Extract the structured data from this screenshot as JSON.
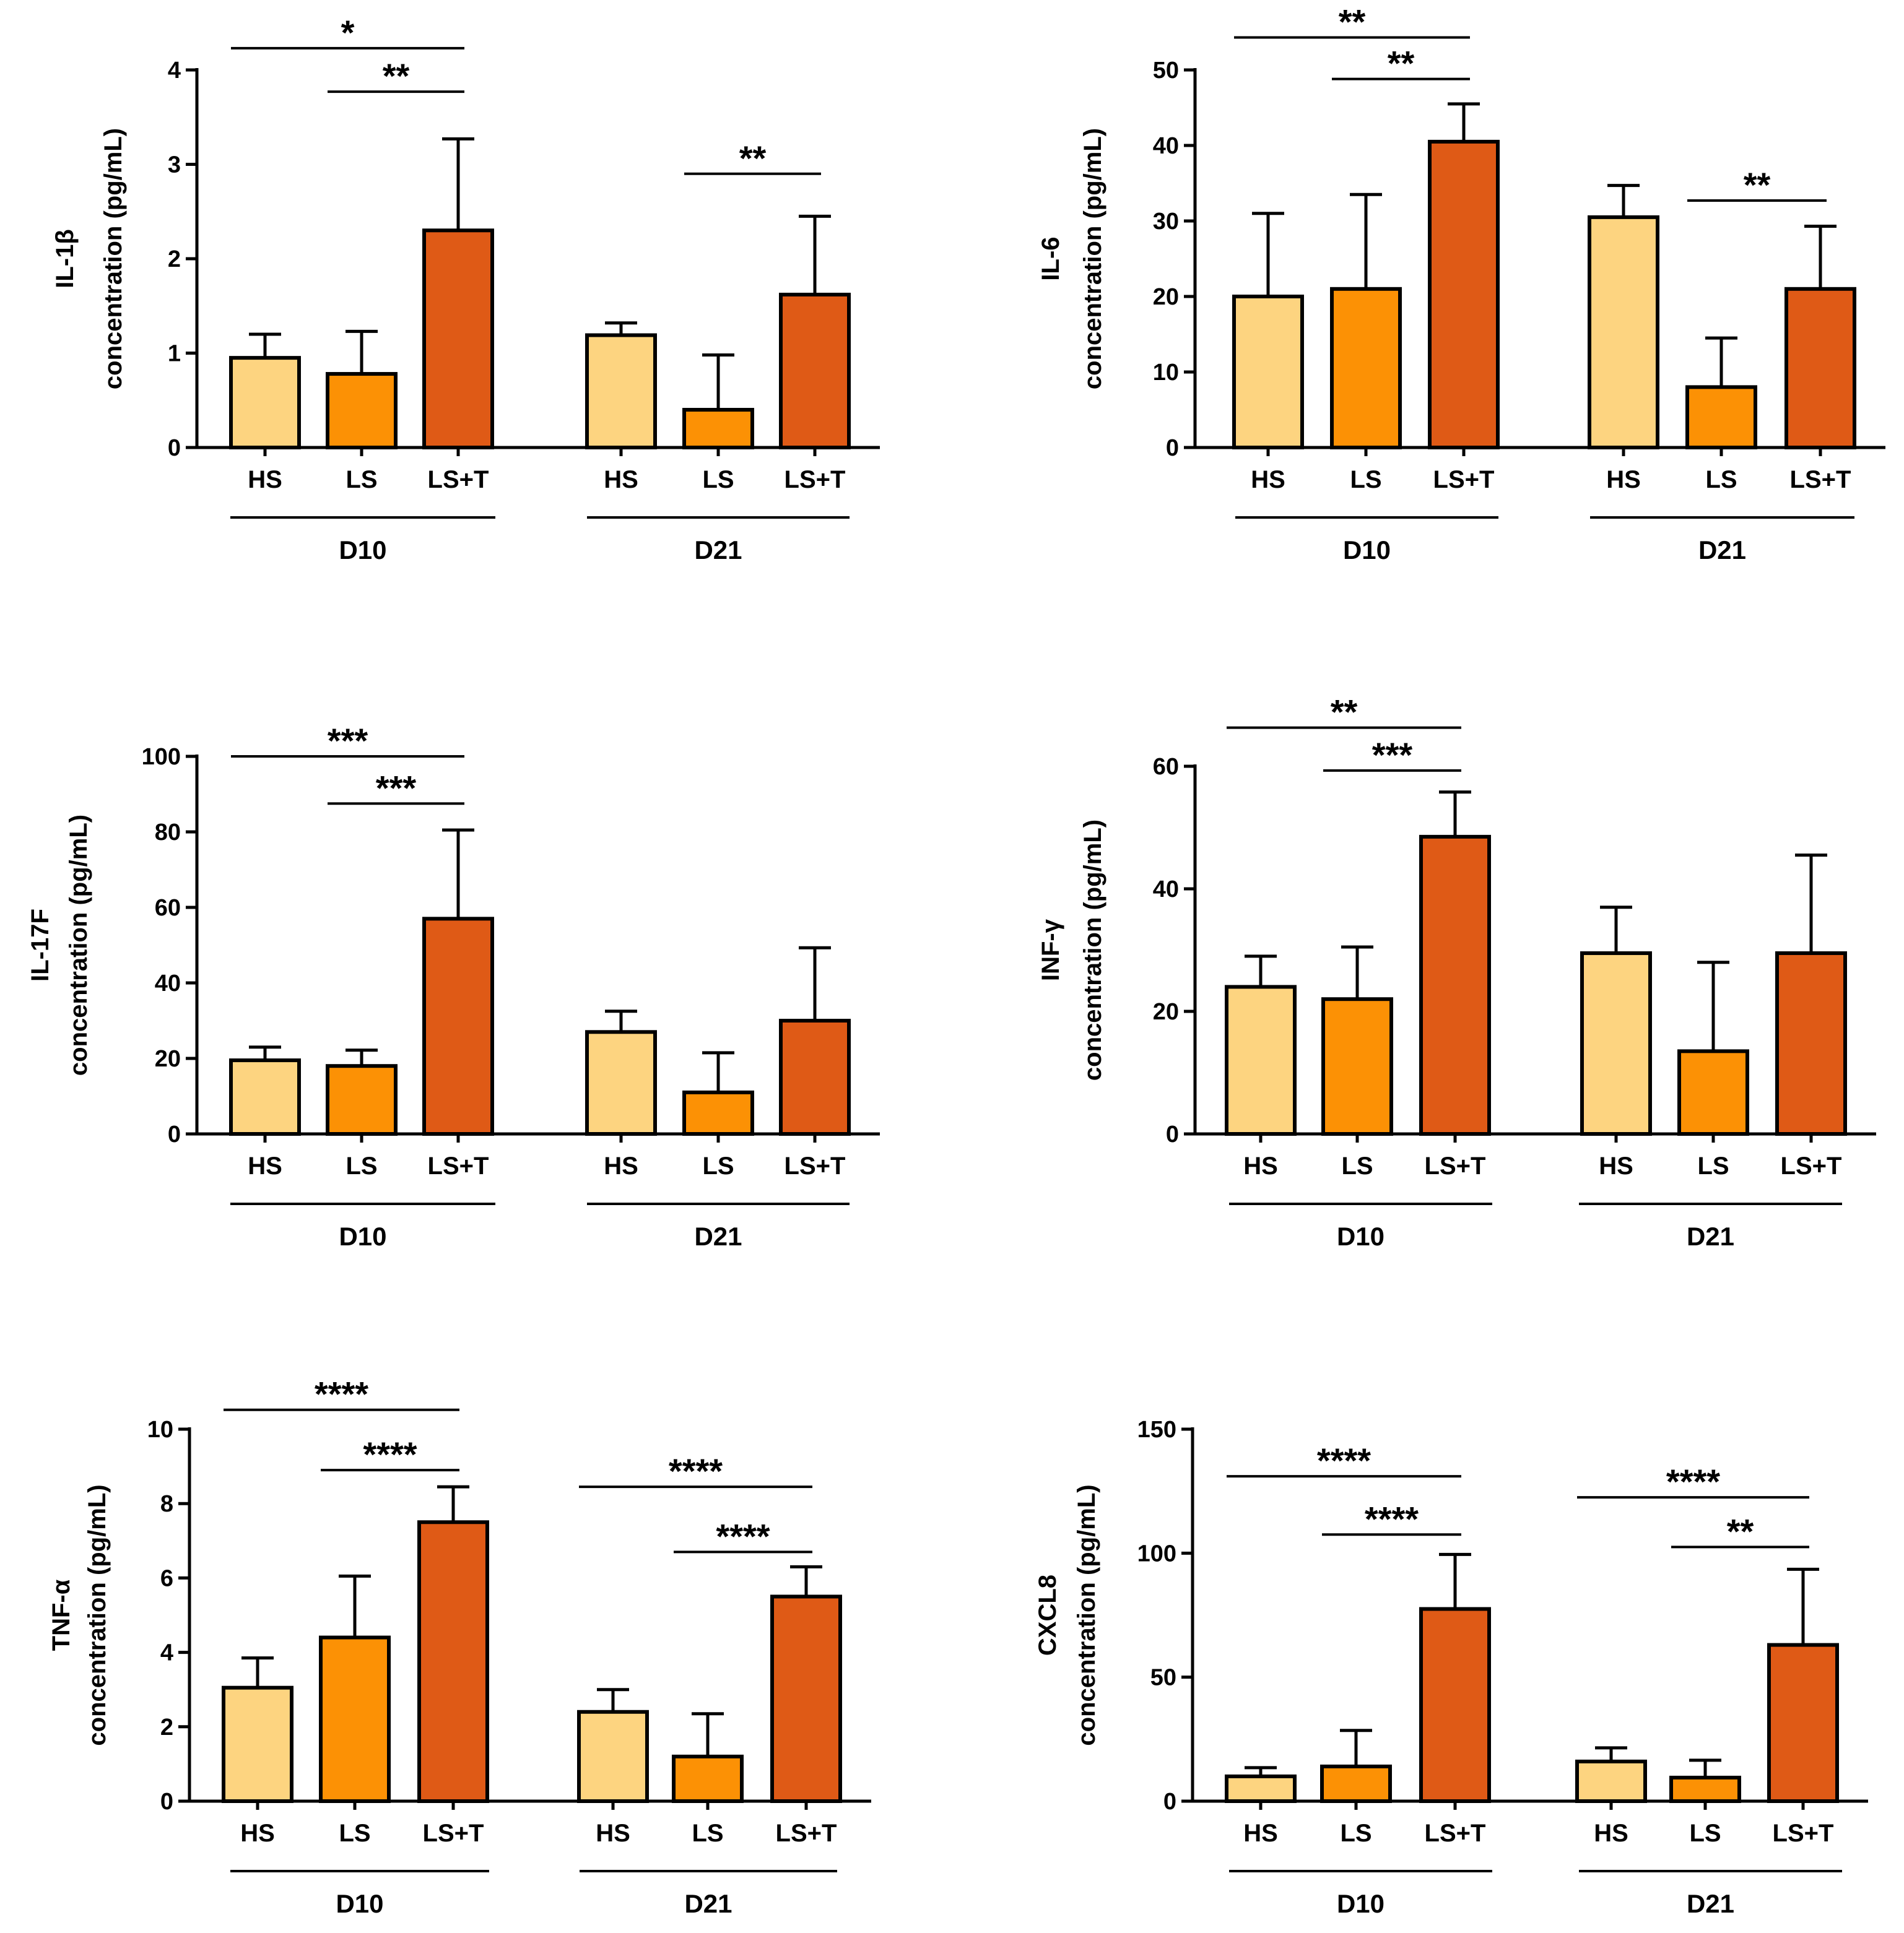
{
  "colors": {
    "HS": "#FDD480",
    "LS": "#FC9105",
    "LS+T": "#DF5A16",
    "stroke": "#000000"
  },
  "chart_data": [
    {
      "type": "bar",
      "ylabel_main": "IL-1β",
      "ylabel_sub": "concentration (pg/mL)",
      "ylim": [
        0,
        4
      ],
      "yticks": [
        0,
        1,
        2,
        3,
        4
      ],
      "categories": [
        "HS",
        "LS",
        "LS+T",
        "HS",
        "LS",
        "LS+T"
      ],
      "groups": [
        "D10",
        "D21"
      ],
      "values": [
        0.95,
        0.78,
        2.3,
        1.19,
        0.4,
        1.62
      ],
      "errors": [
        0.25,
        0.45,
        0.97,
        0.13,
        0.58,
        0.83
      ],
      "significance": [
        {
          "from": 0,
          "to": 2,
          "label": "*",
          "y": 4.23
        },
        {
          "from": 1,
          "to": 2,
          "label": "**",
          "y": 3.77
        },
        {
          "from": 4,
          "to": 5,
          "label": "**",
          "y": 2.9
        }
      ]
    },
    {
      "type": "bar",
      "ylabel_main": "IL-6",
      "ylabel_sub": "concentration (pg/mL)",
      "ylim": [
        0,
        50
      ],
      "yticks": [
        0,
        10,
        20,
        30,
        40,
        50
      ],
      "categories": [
        "HS",
        "LS",
        "LS+T",
        "HS",
        "LS",
        "LS+T"
      ],
      "groups": [
        "D10",
        "D21"
      ],
      "values": [
        20,
        21,
        40.5,
        30.5,
        8,
        21
      ],
      "errors": [
        11,
        12.5,
        5,
        4.2,
        6.5,
        8.3
      ],
      "significance": [
        {
          "from": 0,
          "to": 2,
          "label": "**",
          "y": 54.3
        },
        {
          "from": 1,
          "to": 2,
          "label": "**",
          "y": 48.8
        },
        {
          "from": 4,
          "to": 5,
          "label": "**",
          "y": 32.7
        }
      ]
    },
    {
      "type": "bar",
      "ylabel_main": "IL-17F",
      "ylabel_sub": "concentration (pg/mL)",
      "ylim": [
        0,
        100
      ],
      "yticks": [
        0,
        20,
        40,
        60,
        80,
        100
      ],
      "categories": [
        "HS",
        "LS",
        "LS+T",
        "HS",
        "LS",
        "LS+T"
      ],
      "groups": [
        "D10",
        "D21"
      ],
      "values": [
        19.5,
        18,
        57,
        27,
        11,
        30
      ],
      "errors": [
        3.5,
        4.2,
        23.5,
        5.5,
        10.5,
        19.3
      ],
      "significance": [
        {
          "from": 0,
          "to": 2,
          "label": "***",
          "y": 100
        },
        {
          "from": 1,
          "to": 2,
          "label": "***",
          "y": 87.5
        }
      ]
    },
    {
      "type": "bar",
      "ylabel_main": "INF-γ",
      "ylabel_sub": "concentration (pg/mL)",
      "ylim": [
        0,
        60
      ],
      "yticks": [
        0,
        20,
        40,
        60
      ],
      "categories": [
        "HS",
        "LS",
        "LS+T",
        "HS",
        "LS",
        "LS+T"
      ],
      "groups": [
        "D10",
        "D21"
      ],
      "values": [
        24,
        22,
        48.5,
        29.5,
        13.5,
        29.5
      ],
      "errors": [
        5,
        8.5,
        7.3,
        7.5,
        14.5,
        16
      ],
      "significance": [
        {
          "from": 0,
          "to": 2,
          "label": "**",
          "y": 66.3
        },
        {
          "from": 1,
          "to": 2,
          "label": "***",
          "y": 59.3
        }
      ]
    },
    {
      "type": "bar",
      "ylabel_main": "TNF-α",
      "ylabel_sub": "concentration (pg/mL)",
      "ylim": [
        0,
        10
      ],
      "yticks": [
        0,
        2,
        4,
        6,
        8,
        10
      ],
      "categories": [
        "HS",
        "LS",
        "LS+T",
        "HS",
        "LS",
        "LS+T"
      ],
      "groups": [
        "D10",
        "D21"
      ],
      "values": [
        3.05,
        4.4,
        7.5,
        2.4,
        1.2,
        5.5
      ],
      "errors": [
        0.8,
        1.65,
        0.95,
        0.6,
        1.15,
        0.8
      ],
      "significance": [
        {
          "from": 0,
          "to": 2,
          "label": "****",
          "y": 10.52
        },
        {
          "from": 1,
          "to": 2,
          "label": "****",
          "y": 8.9
        },
        {
          "from": 3,
          "to": 5,
          "label": "****",
          "y": 8.45
        },
        {
          "from": 4,
          "to": 5,
          "label": "****",
          "y": 6.7
        }
      ]
    },
    {
      "type": "bar",
      "ylabel_main": "CXCL8",
      "ylabel_sub": "concentration (pg/mL)",
      "ylim": [
        0,
        150
      ],
      "yticks": [
        0,
        50,
        100,
        150
      ],
      "categories": [
        "HS",
        "LS",
        "LS+T",
        "HS",
        "LS",
        "LS+T"
      ],
      "groups": [
        "D10",
        "D21"
      ],
      "values": [
        10,
        14,
        77.5,
        16,
        9.5,
        63
      ],
      "errors": [
        3.5,
        14.5,
        22,
        5.5,
        7,
        30.5
      ],
      "significance": [
        {
          "from": 0,
          "to": 2,
          "label": "****",
          "y": 131
        },
        {
          "from": 1,
          "to": 2,
          "label": "****",
          "y": 107.5
        },
        {
          "from": 3,
          "to": 5,
          "label": "****",
          "y": 122.5
        },
        {
          "from": 4,
          "to": 5,
          "label": "**",
          "y": 102.5
        }
      ]
    }
  ]
}
